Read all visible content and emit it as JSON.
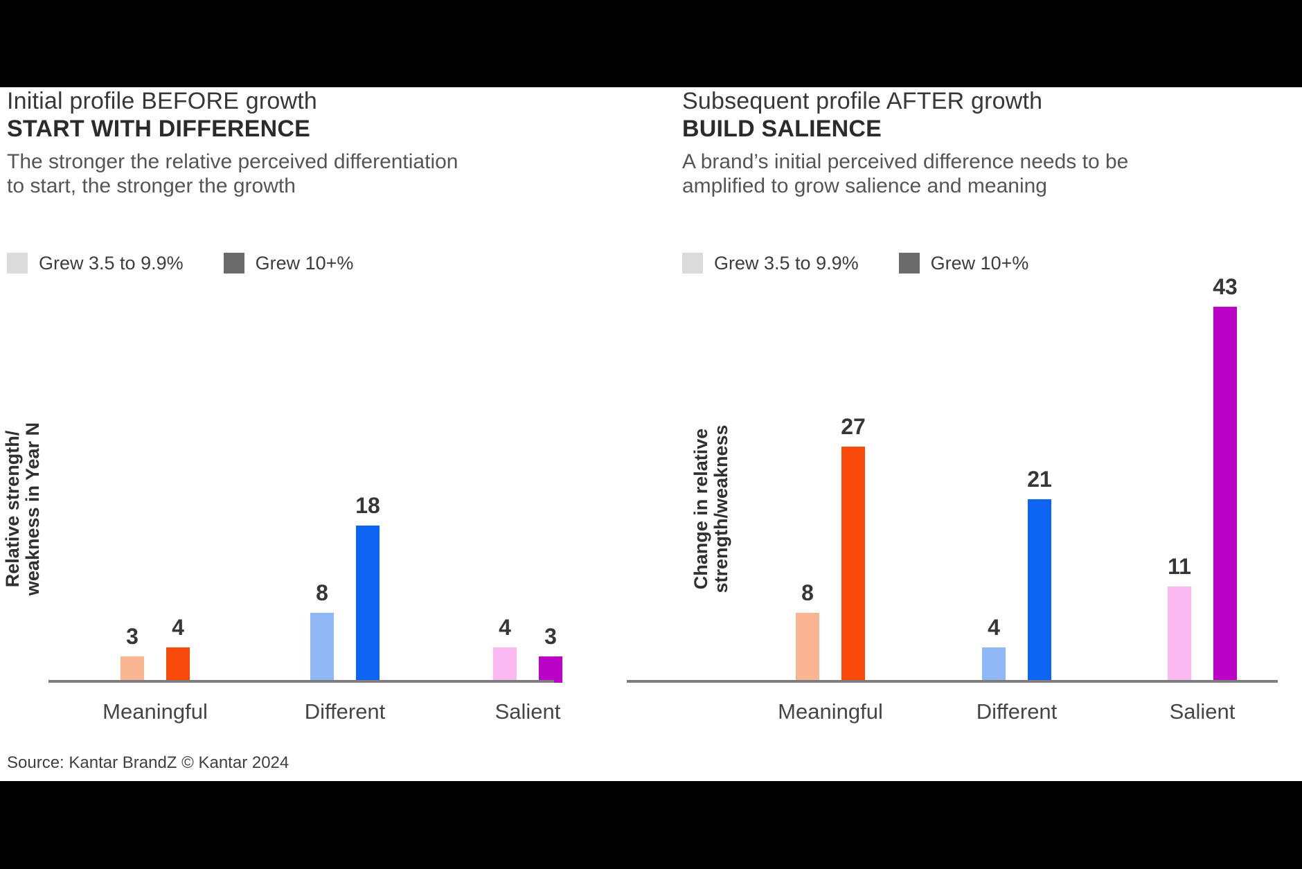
{
  "page": {
    "background": "#000000",
    "panel_background": "#ffffff"
  },
  "source": "Source: Kantar BrandZ © Kantar 2024",
  "chart_data": [
    {
      "type": "bar",
      "title": "Initial profile BEFORE growth",
      "title_emphasis": "START WITH DIFFERENCE",
      "subtitle_lines": [
        "The stronger the relative perceived differentiation",
        "to start, the stronger the growth"
      ],
      "ylabel_lines": [
        "Relative strength/",
        "weakness in Year N"
      ],
      "categories": [
        "Meaningful",
        "Different",
        "Salient"
      ],
      "series": [
        {
          "name": "Grew 3.5 to 9.9%",
          "values": [
            3,
            8,
            4
          ]
        },
        {
          "name": "Grew 10+%",
          "values": [
            4,
            18,
            3
          ]
        }
      ],
      "legend": [
        {
          "label": "Grew 3.5 to 9.9%",
          "swatch": "#dbdbdb"
        },
        {
          "label": "Grew 10+%",
          "swatch": "#6b6b6b"
        }
      ],
      "bar_colors": {
        "series1": [
          "#FAB592",
          "#8FB7F6",
          "#F9B8EF"
        ],
        "series2": [
          "#F8490B",
          "#0D63F2",
          "#BA03C6"
        ]
      },
      "ylim": [
        0,
        45
      ],
      "grid": "off",
      "legend_position": "top-left"
    },
    {
      "type": "bar",
      "title": "Subsequent profile AFTER growth",
      "title_emphasis": "BUILD SALIENCE",
      "subtitle_lines": [
        "A brand’s initial perceived difference needs to be",
        "amplified to grow salience and meaning"
      ],
      "ylabel_lines": [
        "Change in relative",
        "strength/weakness"
      ],
      "categories": [
        "Meaningful",
        "Different",
        "Salient"
      ],
      "series": [
        {
          "name": "Grew 3.5 to 9.9%",
          "values": [
            8,
            4,
            11
          ]
        },
        {
          "name": "Grew 10+%",
          "values": [
            27,
            21,
            43
          ]
        }
      ],
      "legend": [
        {
          "label": "Grew 3.5 to 9.9%",
          "swatch": "#dbdbdb"
        },
        {
          "label": "Grew 10+%",
          "swatch": "#6b6b6b"
        }
      ],
      "bar_colors": {
        "series1": [
          "#FAB592",
          "#8FB7F6",
          "#F9B8EF"
        ],
        "series2": [
          "#F8490B",
          "#0D63F2",
          "#BA03C6"
        ]
      },
      "ylim": [
        0,
        45
      ],
      "grid": "off",
      "legend_position": "top-left"
    }
  ]
}
